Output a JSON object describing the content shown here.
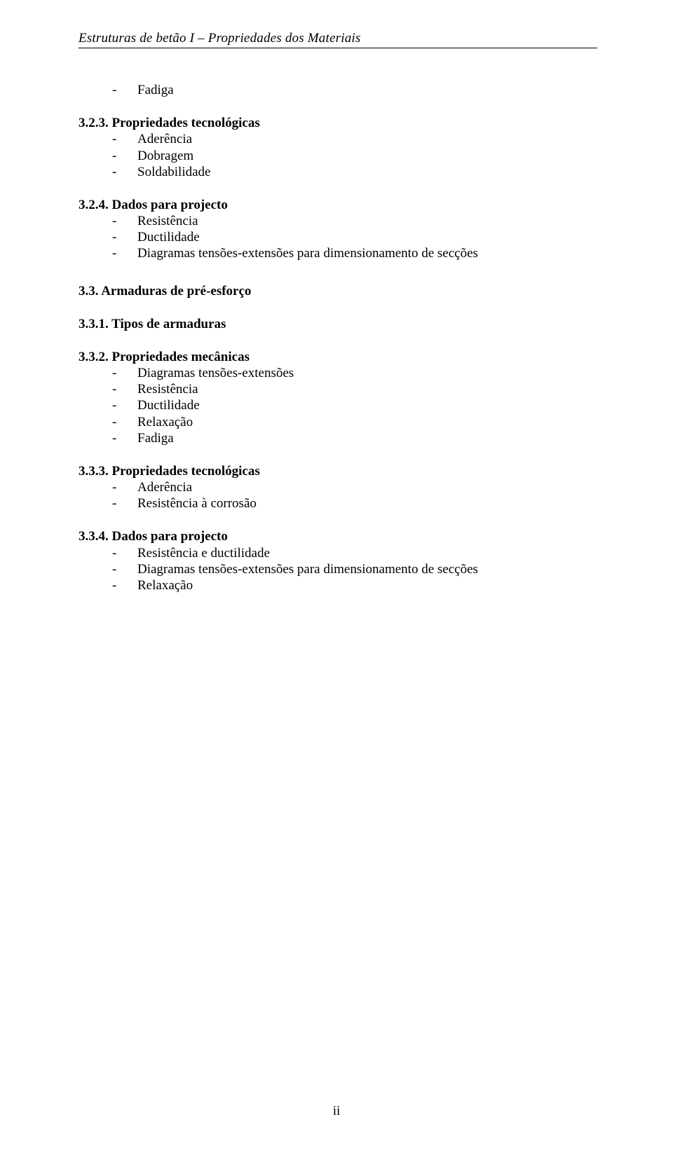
{
  "header": "Estruturas de betão I – Propriedades dos Materiais",
  "sections": [
    {
      "pre_items": [
        "Fadiga"
      ],
      "heading": "3.2.3. Propriedades tecnológicas",
      "items": [
        "Aderência",
        "Dobragem",
        "Soldabilidade"
      ]
    },
    {
      "heading": "3.2.4. Dados para projecto",
      "items": [
        "Resistência",
        "Ductilidade",
        "Diagramas tensões-extensões para dimensionamento de secções"
      ]
    },
    {
      "heading_major": "3.3. Armaduras de pré-esforço"
    },
    {
      "heading": "3.3.1. Tipos de armaduras",
      "items": []
    },
    {
      "heading": "3.3.2. Propriedades mecânicas",
      "items": [
        "Diagramas tensões-extensões",
        "Resistência",
        "Ductilidade",
        "Relaxação",
        "Fadiga"
      ]
    },
    {
      "heading": "3.3.3. Propriedades tecnológicas",
      "items": [
        "Aderência",
        "Resistência à corrosão"
      ]
    },
    {
      "heading": "3.3.4. Dados para projecto",
      "items": [
        "Resistência e ductilidade",
        "Diagramas tensões-extensões para dimensionamento de secções",
        "Relaxação"
      ]
    }
  ],
  "page_number": "ii",
  "dash": "-"
}
